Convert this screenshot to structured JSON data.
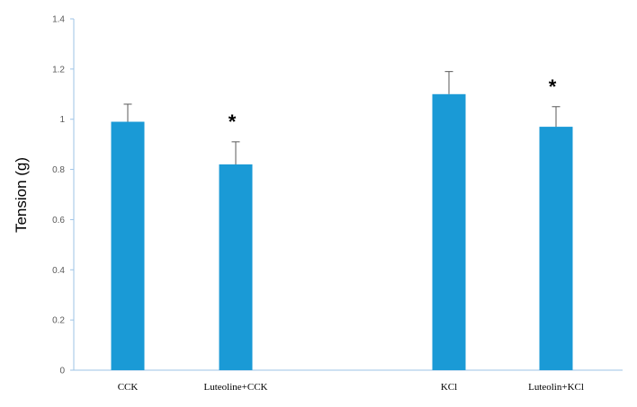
{
  "chart_data": {
    "type": "bar",
    "title": "",
    "xlabel": "",
    "ylabel": "Tension (g)",
    "ylim": [
      0,
      1.4
    ],
    "yticks": [
      0,
      0.2,
      0.4,
      0.6,
      0.8,
      1,
      1.2,
      1.4
    ],
    "ytick_labels": [
      "0",
      "0.2",
      "0.4",
      "0.6",
      "0.8",
      "1",
      "1.2",
      "1.4"
    ],
    "categories": [
      "CCK",
      "Luteoline+CCK",
      "KCl",
      "Luteolin+KCl"
    ],
    "values": [
      0.99,
      0.82,
      1.1,
      0.97
    ],
    "error_upper": [
      0.07,
      0.09,
      0.09,
      0.08
    ],
    "annotations": [
      "",
      "*",
      "",
      "*"
    ],
    "grid": false,
    "legend": "none",
    "colors": {
      "bar": "#1a9ad6",
      "axis": "#9dc3e6",
      "error_bar": "#595959"
    }
  }
}
